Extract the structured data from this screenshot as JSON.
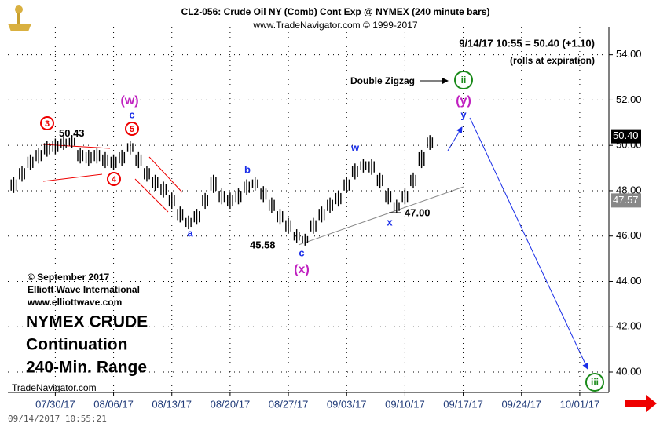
{
  "chart_data": {
    "type": "ohlc",
    "title": "CL2-056:  Crude Oil NY (Comb) Cont Exp @ NYMEX  (240 minute bars)",
    "subtitle": "www.TradeNavigator.com © 1999-2017",
    "quote": "9/14/17 10:55 = 50.40 (+1.10)",
    "quote_note": "(rolls at expiration)",
    "xlim": [
      -5.7,
      66.5
    ],
    "ylim": [
      39.1,
      55.2
    ],
    "xticks": [
      {
        "value": 0,
        "label": "07/30/17"
      },
      {
        "value": 7,
        "label": "08/06/17"
      },
      {
        "value": 14,
        "label": "08/13/17"
      },
      {
        "value": 21,
        "label": "08/20/17"
      },
      {
        "value": 28,
        "label": "08/27/17"
      },
      {
        "value": 35,
        "label": "09/03/17"
      },
      {
        "value": 42,
        "label": "09/10/17"
      },
      {
        "value": 49,
        "label": "09/17/17"
      },
      {
        "value": 56,
        "label": "09/24/17"
      },
      {
        "value": 63,
        "label": "10/01/17"
      }
    ],
    "yticks": [
      {
        "value": 40,
        "label": "40.00"
      },
      {
        "value": 42,
        "label": "42.00"
      },
      {
        "value": 44,
        "label": "44.00"
      },
      {
        "value": 46,
        "label": "46.00"
      },
      {
        "value": 48,
        "label": "48.00"
      },
      {
        "value": 50,
        "label": "50.00"
      },
      {
        "value": 52,
        "label": "52.00"
      },
      {
        "value": 54,
        "label": "54.00"
      }
    ],
    "grid": true,
    "color": "#000000",
    "x": [
      -5,
      -4,
      -3,
      -2,
      -1,
      0,
      1,
      2,
      3,
      4,
      5,
      6,
      7,
      8,
      9,
      10,
      11,
      12,
      13,
      14,
      15,
      16,
      17,
      18,
      19,
      20,
      21,
      22,
      23,
      24,
      25,
      26,
      27,
      28,
      29,
      30,
      31,
      32,
      33,
      34,
      35,
      36,
      37,
      38,
      39,
      40,
      41,
      42,
      43,
      44,
      45
    ],
    "high": [
      48.6,
      49.1,
      49.6,
      49.9,
      50.2,
      50.3,
      50.4,
      50.43,
      49.9,
      49.8,
      49.9,
      49.7,
      49.6,
      49.8,
      50.2,
      49.7,
      49.1,
      48.7,
      48.4,
      47.9,
      47.3,
      46.9,
      47.2,
      47.9,
      48.7,
      48.1,
      47.9,
      48.1,
      48.5,
      48.6,
      48.2,
      47.7,
      47.2,
      46.8,
      46.3,
      46.1,
      46.8,
      47.3,
      47.7,
      48.0,
      48.6,
      49.2,
      49.4,
      49.4,
      48.8,
      48.1,
      47.6,
      48.1,
      48.8,
      49.8,
      50.45
    ],
    "low": [
      47.9,
      48.4,
      48.9,
      49.2,
      49.5,
      49.6,
      49.8,
      49.9,
      49.2,
      49.1,
      49.2,
      49.0,
      48.9,
      49.1,
      49.6,
      49.0,
      48.4,
      48.0,
      47.7,
      47.2,
      46.6,
      46.3,
      46.5,
      47.2,
      47.9,
      47.4,
      47.2,
      47.4,
      47.8,
      48.0,
      47.5,
      47.0,
      46.5,
      46.1,
      45.7,
      45.58,
      46.1,
      46.6,
      47.0,
      47.3,
      47.9,
      48.5,
      48.8,
      48.7,
      48.1,
      47.4,
      47.0,
      47.4,
      48.1,
      49.0,
      49.8
    ],
    "price_labels": [
      {
        "value": 50.43,
        "label": "50.43"
      },
      {
        "value": 45.58,
        "label": "45.58"
      },
      {
        "value": 47,
        "label": "47.00"
      }
    ],
    "last_prices": [
      {
        "value": 50.4,
        "label": "50.40"
      },
      {
        "value": 47.57,
        "label": "47.57"
      }
    ],
    "annotations": [
      "Double Zigzag",
      "(w)",
      "c",
      "5",
      "3",
      "4",
      "a",
      "b",
      "c",
      "(x)",
      "w",
      "x",
      "y",
      "(y)",
      "ii",
      "iii"
    ],
    "credits": [
      "© September 2017",
      "Elliott Wave International",
      "www.elliottwave.com"
    ],
    "headline": [
      "NYMEX CRUDE",
      "Continuation",
      "240-Min. Range"
    ],
    "source": "TradeNavigator.com",
    "timestamp": "09/14/2017 10:55:21"
  }
}
